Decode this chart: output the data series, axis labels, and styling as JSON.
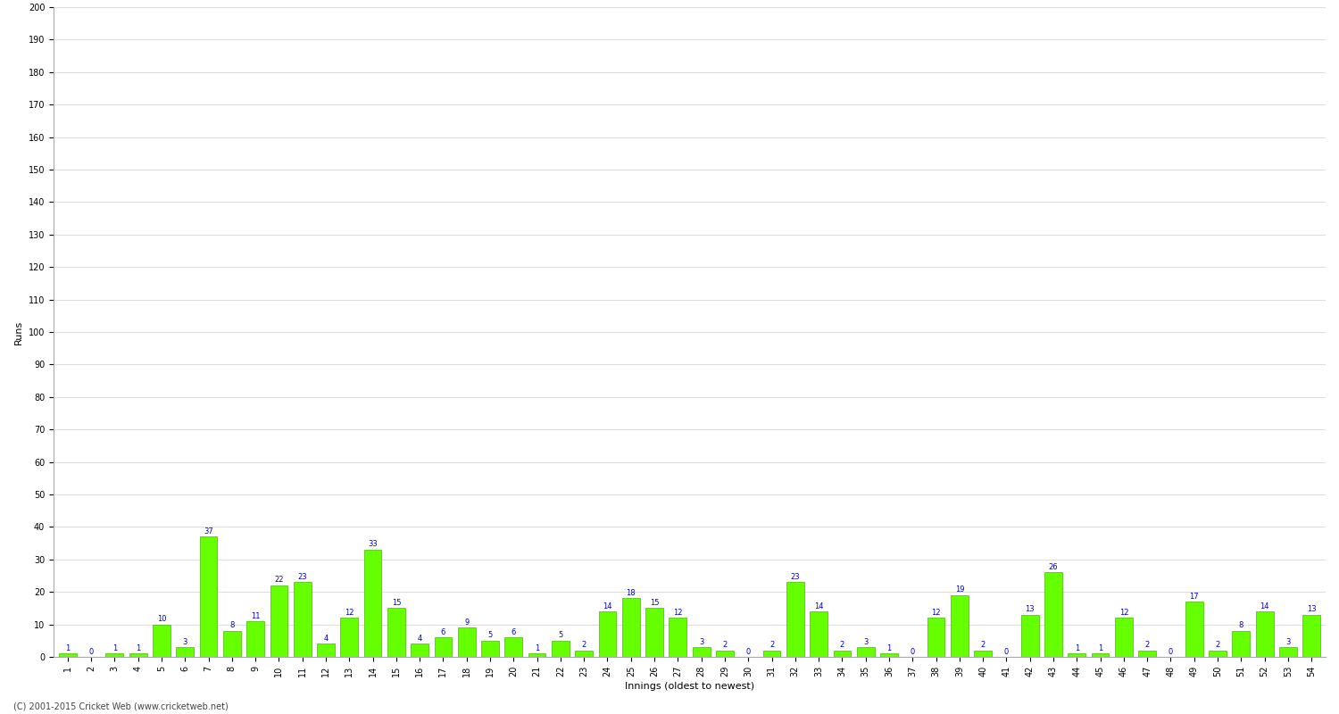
{
  "title": "",
  "xlabel": "Innings (oldest to newest)",
  "ylabel": "Runs",
  "ylim": [
    0,
    200
  ],
  "yticks": [
    0,
    10,
    20,
    30,
    40,
    50,
    60,
    70,
    80,
    90,
    100,
    110,
    120,
    130,
    140,
    150,
    160,
    170,
    180,
    190,
    200
  ],
  "innings": [
    1,
    2,
    3,
    4,
    5,
    6,
    7,
    8,
    9,
    10,
    11,
    12,
    13,
    14,
    15,
    16,
    17,
    18,
    19,
    20,
    21,
    22,
    23,
    24,
    25,
    26,
    27,
    28,
    29,
    30,
    31,
    32,
    33,
    34,
    35,
    36,
    37,
    38,
    39,
    40,
    41,
    42,
    43,
    44,
    45,
    46,
    47,
    48,
    49,
    50,
    51,
    52,
    53,
    54
  ],
  "values": [
    1,
    0,
    1,
    1,
    10,
    3,
    37,
    8,
    11,
    22,
    23,
    4,
    12,
    33,
    15,
    4,
    6,
    9,
    5,
    6,
    1,
    5,
    2,
    14,
    18,
    15,
    12,
    3,
    2,
    0,
    2,
    23,
    14,
    2,
    3,
    1,
    0,
    12,
    19,
    2,
    0,
    13,
    26,
    1,
    1,
    12,
    2,
    0,
    17,
    2,
    8,
    14,
    3,
    13
  ],
  "bar_color": "#66ff00",
  "bar_edge_color": "#44bb00",
  "label_color": "#0000cc",
  "bg_color": "#ffffff",
  "grid_color": "#dddddd",
  "axis_label_fontsize": 8,
  "tick_fontsize": 7,
  "value_label_fontsize": 6,
  "footer_text": "(C) 2001-2015 Cricket Web (www.cricketweb.net)"
}
